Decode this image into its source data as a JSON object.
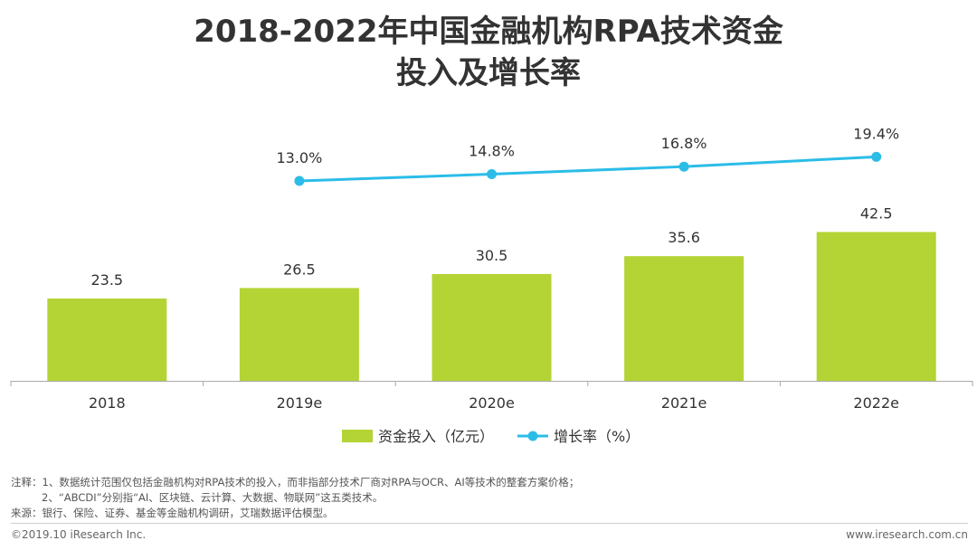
{
  "title": {
    "line1": "2018-2022年中国金融机构RPA技术资金",
    "line2": "投入及增长率"
  },
  "chart_data": {
    "type": "bar",
    "categories": [
      "2018",
      "2019e",
      "2020e",
      "2021e",
      "2022e"
    ],
    "series": [
      {
        "name": "资金投入（亿元）",
        "type": "bar",
        "values": [
          23.5,
          26.5,
          30.5,
          35.6,
          42.5
        ],
        "labels": [
          "23.5",
          "26.5",
          "30.5",
          "35.6",
          "42.5"
        ]
      },
      {
        "name": "增长率（%）",
        "type": "line",
        "values": [
          null,
          13.0,
          14.8,
          16.8,
          19.4
        ],
        "labels": [
          "",
          "13.0%",
          "14.8%",
          "16.8%",
          "19.4%"
        ]
      }
    ],
    "ylim": [
      0,
      70
    ],
    "rate_ylim": [
      -40,
      25
    ],
    "colors": {
      "bar": "#b4d334",
      "line": "#2bbde7",
      "axis": "#aaaaaa"
    }
  },
  "notes": {
    "line1": "注释：1、数据统计范围仅包括金融机构对RPA技术的投入，而非指部分技术厂商对RPA与OCR、AI等技术的整套方案价格；",
    "line2": "2、“ABCDI”分别指“AI、区块链、云计算、大数据、物联网”这五类技术。",
    "source": "来源：银行、保险、证券、基金等金融机构调研，艾瑞数据评估模型。"
  },
  "footer": {
    "copyright": "©2019.10 iResearch Inc.",
    "website": "www.iresearch.com.cn"
  }
}
